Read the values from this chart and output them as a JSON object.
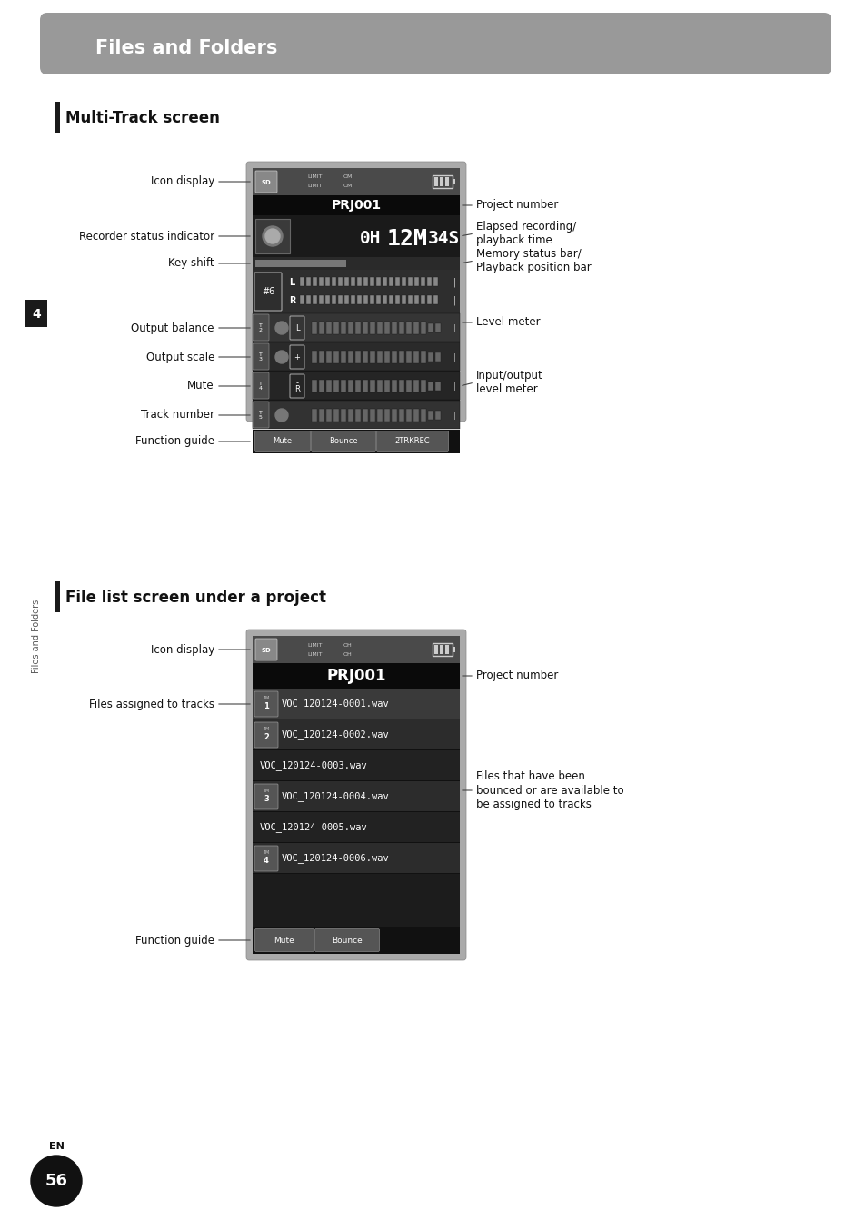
{
  "page_bg": "#ffffff",
  "header_bg": "#999999",
  "header_text": "Files and Folders",
  "header_text_color": "#ffffff",
  "section1_title": "Multi-Track screen",
  "section2_title": "File list screen under a project",
  "sidebar_text": "Files and Folders",
  "page_number": "56",
  "page_label": "EN",
  "fs_label": 8.5,
  "fs_section": 12,
  "fs_header": 15
}
